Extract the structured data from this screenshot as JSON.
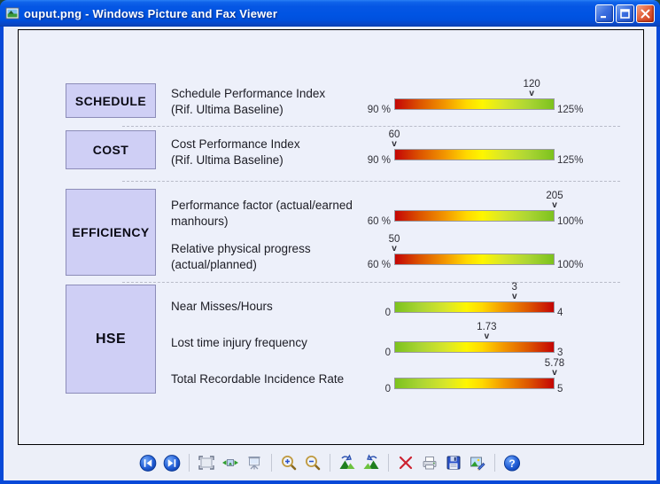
{
  "window": {
    "title": "ouput.png - Windows Picture and Fax Viewer",
    "control_icons": [
      "minimize-icon",
      "maximize-icon",
      "close-icon"
    ]
  },
  "colors": {
    "titlebar_blue": "#0054e3",
    "window_border": "#0849d8",
    "canvas_bg": "#edf0fa",
    "category_box_fill": "#cfcff5",
    "category_box_border": "#8c8cb8",
    "gauge_red": "#c40505",
    "gauge_yellow": "#fef600",
    "gauge_green": "#7cc21e"
  },
  "gauges": {
    "marker_glyph": "v",
    "sections": [
      {
        "category": "SCHEDULE",
        "metrics": [
          {
            "label_line1": "Schedule Performance Index",
            "label_line2": "(Rif. Ultima Baseline)",
            "min": 90,
            "max": 125,
            "value": 120,
            "value_label": "120",
            "min_label": "90 %",
            "max_label": "125%",
            "scale": "red-green"
          }
        ]
      },
      {
        "category": "COST",
        "metrics": [
          {
            "label_line1": "Cost Performance Index",
            "label_line2": "(Rif. Ultima Baseline)",
            "min": 90,
            "max": 125,
            "value": 60,
            "value_label": "60",
            "min_label": "90 %",
            "max_label": "125%",
            "scale": "red-green"
          }
        ]
      },
      {
        "category": "EFFICIENCY",
        "metrics": [
          {
            "label_line1": "Performance factor (actual/earned",
            "label_line2": "manhours)",
            "min": 60,
            "max": 100,
            "value": 205,
            "value_label": "205",
            "min_label": "60 %",
            "max_label": "100%",
            "scale": "red-green"
          },
          {
            "label_line1": "Relative physical progress",
            "label_line2": "(actual/planned)",
            "min": 60,
            "max": 100,
            "value": 50,
            "value_label": "50",
            "min_label": "60 %",
            "max_label": "100%",
            "scale": "red-green"
          }
        ]
      },
      {
        "category": "HSE",
        "metrics": [
          {
            "label_line1": "Near Misses/Hours",
            "label_line2": "",
            "min": 0,
            "max": 4,
            "value": 3,
            "value_label": "3",
            "min_label": "0",
            "max_label": "4",
            "scale": "green-red"
          },
          {
            "label_line1": "Lost time injury frequency",
            "label_line2": "",
            "min": 0,
            "max": 3,
            "value": 1.73,
            "value_label": "1.73",
            "min_label": "0",
            "max_label": "3",
            "scale": "green-red"
          },
          {
            "label_line1": "Total Recordable Incidence Rate",
            "label_line2": "",
            "min": 0,
            "max": 5,
            "value": 5.78,
            "value_label": "5.78",
            "min_label": "0",
            "max_label": "5",
            "scale": "green-red"
          }
        ]
      }
    ]
  },
  "toolbar": {
    "icons": [
      "previous-image-icon",
      "next-image-icon",
      "best-fit-icon",
      "actual-size-icon",
      "slideshow-icon",
      "zoom-in-icon",
      "zoom-out-icon",
      "rotate-clockwise-icon",
      "rotate-counterclockwise-icon",
      "delete-icon",
      "print-icon",
      "save-icon",
      "edit-icon",
      "help-icon"
    ]
  }
}
